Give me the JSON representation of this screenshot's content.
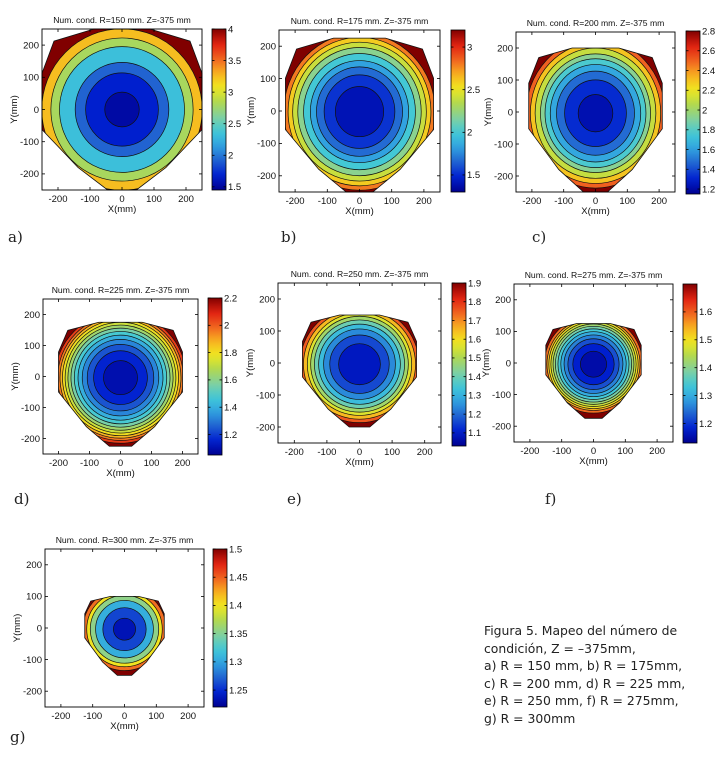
{
  "figure": {
    "caption_lines": [
      "Figura 5. Mapeo del número de",
      "condición, Z = –375mm,",
      "a) R = 150 mm, b) R = 175mm,",
      "c) R = 200 mm, d) R = 225 mm,",
      "e) R = 250 mm, f) R = 275mm,",
      "g) R = 300mm"
    ],
    "colormap": [
      "#00008f",
      "#0020d0",
      "#2060d0",
      "#30a0e0",
      "#40c8d8",
      "#80d0a0",
      "#b0d850",
      "#f0e820",
      "#f8b020",
      "#f06020",
      "#e02010",
      "#800000"
    ],
    "contour_line_color": "#111111"
  },
  "chart_data": [
    {
      "type": "heatmap",
      "panel": "a)",
      "title": "Num. cond. R=150 mm. Z=-375 mm",
      "xlabel": "X(mm)",
      "ylabel": "Y(mm)",
      "xlim": [
        -250,
        250
      ],
      "ylim": [
        -250,
        250
      ],
      "xticks": [
        "-200",
        "-100",
        "0",
        "100",
        "200"
      ],
      "yticks": [
        "200",
        "100",
        "0",
        "-100",
        "-200"
      ],
      "clim": [
        1.45,
        4.0
      ],
      "cticks": [
        "4",
        "3.5",
        "3",
        "2.5",
        "2",
        "1.5"
      ],
      "cticks_values": [
        4,
        3.5,
        3,
        2.5,
        2,
        1.5
      ],
      "levels": [
        1.55,
        1.8,
        2.05,
        2.6,
        3.0,
        3.5
      ],
      "shape": {
        "top": 250,
        "bottom": -250,
        "side": 250
      },
      "min_center": 1.5,
      "max_edge": 4.0
    },
    {
      "type": "heatmap",
      "panel": "b)",
      "title": "Num. cond. R=175 mm. Z=-375 mm",
      "xlabel": "X(mm)",
      "ylabel": "Y(mm)",
      "xlim": [
        -250,
        250
      ],
      "ylim": [
        -250,
        250
      ],
      "xticks": [
        "-200",
        "-100",
        "0",
        "100",
        "200"
      ],
      "yticks": [
        "200",
        "100",
        "0",
        "-100",
        "-200"
      ],
      "clim": [
        1.3,
        3.2
      ],
      "cticks": [
        "3",
        "2.5",
        "2",
        "1.5"
      ],
      "cticks_values": [
        3,
        2.5,
        2,
        1.5
      ],
      "levels": [
        1.45,
        1.6,
        1.75,
        1.9,
        2.1,
        2.3,
        2.5,
        2.7,
        2.9
      ],
      "shape": {
        "top": 225,
        "bottom": -250,
        "side": 230
      },
      "min_center": 1.35,
      "max_edge": 3.2
    },
    {
      "type": "heatmap",
      "panel": "c)",
      "title": "Num. cond. R=200 mm. Z=-375 mm",
      "xlabel": "X(mm)",
      "ylabel": "Y(mm)",
      "xlim": [
        -250,
        250
      ],
      "ylim": [
        -250,
        250
      ],
      "xticks": [
        "-200",
        "-100",
        "0",
        "100",
        "200"
      ],
      "yticks": [
        "200",
        "100",
        "0",
        "-100",
        "-200"
      ],
      "clim": [
        1.15,
        2.8
      ],
      "cticks": [
        "2.8",
        "2.6",
        "2.4",
        "2.2",
        "2",
        "1.8",
        "1.6",
        "1.4",
        "1.2"
      ],
      "cticks_values": [
        2.8,
        2.6,
        2.4,
        2.2,
        2,
        1.8,
        1.6,
        1.4,
        1.2
      ],
      "levels": [
        1.25,
        1.4,
        1.55,
        1.7,
        1.85,
        2.0,
        2.2,
        2.4,
        2.6
      ],
      "shape": {
        "top": 200,
        "bottom": -250,
        "side": 210
      },
      "min_center": 1.2,
      "max_edge": 2.8
    },
    {
      "type": "heatmap",
      "panel": "d)",
      "title": "Num. cond. R=225 mm. Z=-375 mm",
      "xlabel": "X(mm)",
      "ylabel": "Y(mm)",
      "xlim": [
        -250,
        250
      ],
      "ylim": [
        -250,
        250
      ],
      "xticks": [
        "-200",
        "-100",
        "0",
        "100",
        "200"
      ],
      "yticks": [
        "200",
        "100",
        "0",
        "-100",
        "-200"
      ],
      "clim": [
        1.05,
        2.2
      ],
      "cticks": [
        "2.2",
        "2",
        "1.8",
        "1.6",
        "1.4",
        "1.2"
      ],
      "cticks_values": [
        2.2,
        2,
        1.8,
        1.6,
        1.4,
        1.2
      ],
      "levels": [
        1.12,
        1.2,
        1.28,
        1.36,
        1.44,
        1.52,
        1.6,
        1.68,
        1.76,
        1.84,
        1.92,
        2.0,
        2.1
      ],
      "shape": {
        "top": 175,
        "bottom": -225,
        "side": 200
      },
      "min_center": 1.08,
      "max_edge": 2.2
    },
    {
      "type": "heatmap",
      "panel": "e)",
      "title": "Num. cond. R=250 mm. Z=-375 mm",
      "xlabel": "X(mm)",
      "ylabel": "Y(mm)",
      "xlim": [
        -250,
        250
      ],
      "ylim": [
        -250,
        250
      ],
      "xticks": [
        "-200",
        "-100",
        "0",
        "100",
        "200"
      ],
      "yticks": [
        "200",
        "100",
        "0",
        "-100",
        "-200"
      ],
      "clim": [
        1.03,
        1.9
      ],
      "cticks": [
        "1.9",
        "1.8",
        "1.7",
        "1.6",
        "1.5",
        "1.4",
        "1.3",
        "1.2",
        "1.1"
      ],
      "cticks_values": [
        1.9,
        1.8,
        1.7,
        1.6,
        1.5,
        1.4,
        1.3,
        1.2,
        1.1
      ],
      "levels": [
        1.12,
        1.2,
        1.28,
        1.36,
        1.44,
        1.52,
        1.6,
        1.7,
        1.8
      ],
      "shape": {
        "top": 150,
        "bottom": -200,
        "side": 175
      },
      "min_center": 1.06,
      "max_edge": 1.9
    },
    {
      "type": "heatmap",
      "panel": "f)",
      "title": "Num. cond. R=275 mm. Z=-375 mm",
      "xlabel": "X(mm)",
      "ylabel": "Y(mm)",
      "xlim": [
        -250,
        250
      ],
      "ylim": [
        -250,
        250
      ],
      "xticks": [
        "-200",
        "-100",
        "0",
        "100",
        "200"
      ],
      "yticks": [
        "200",
        "100",
        "0",
        "-100",
        "-200"
      ],
      "clim": [
        1.13,
        1.7
      ],
      "cticks": [
        "1.6",
        "1.5",
        "1.4",
        "1.3",
        "1.2"
      ],
      "cticks_values": [
        1.6,
        1.5,
        1.4,
        1.3,
        1.2
      ],
      "levels": [
        1.16,
        1.2,
        1.24,
        1.28,
        1.32,
        1.36,
        1.4,
        1.44,
        1.48,
        1.52,
        1.56,
        1.62
      ],
      "shape": {
        "top": 125,
        "bottom": -175,
        "side": 150
      },
      "min_center": 1.14,
      "max_edge": 1.7
    },
    {
      "type": "heatmap",
      "panel": "g)",
      "title": "Num. cond. R=300 mm. Z=-375 mm",
      "xlabel": "X(mm)",
      "ylabel": "Y(mm)",
      "xlim": [
        -250,
        250
      ],
      "ylim": [
        -250,
        250
      ],
      "xticks": [
        "-200",
        "-100",
        "0",
        "100",
        "200"
      ],
      "yticks": [
        "200",
        "100",
        "0",
        "-100",
        "-200"
      ],
      "clim": [
        1.22,
        1.5
      ],
      "cticks": [
        "1.5",
        "1.45",
        "1.4",
        "1.35",
        "1.3",
        "1.25"
      ],
      "cticks_values": [
        1.5,
        1.45,
        1.4,
        1.35,
        1.3,
        1.25
      ],
      "levels": [
        1.24,
        1.28,
        1.33,
        1.38,
        1.42,
        1.47
      ],
      "shape": {
        "top": 100,
        "bottom": -150,
        "side": 125
      },
      "min_center": 1.23,
      "max_edge": 1.5
    }
  ]
}
